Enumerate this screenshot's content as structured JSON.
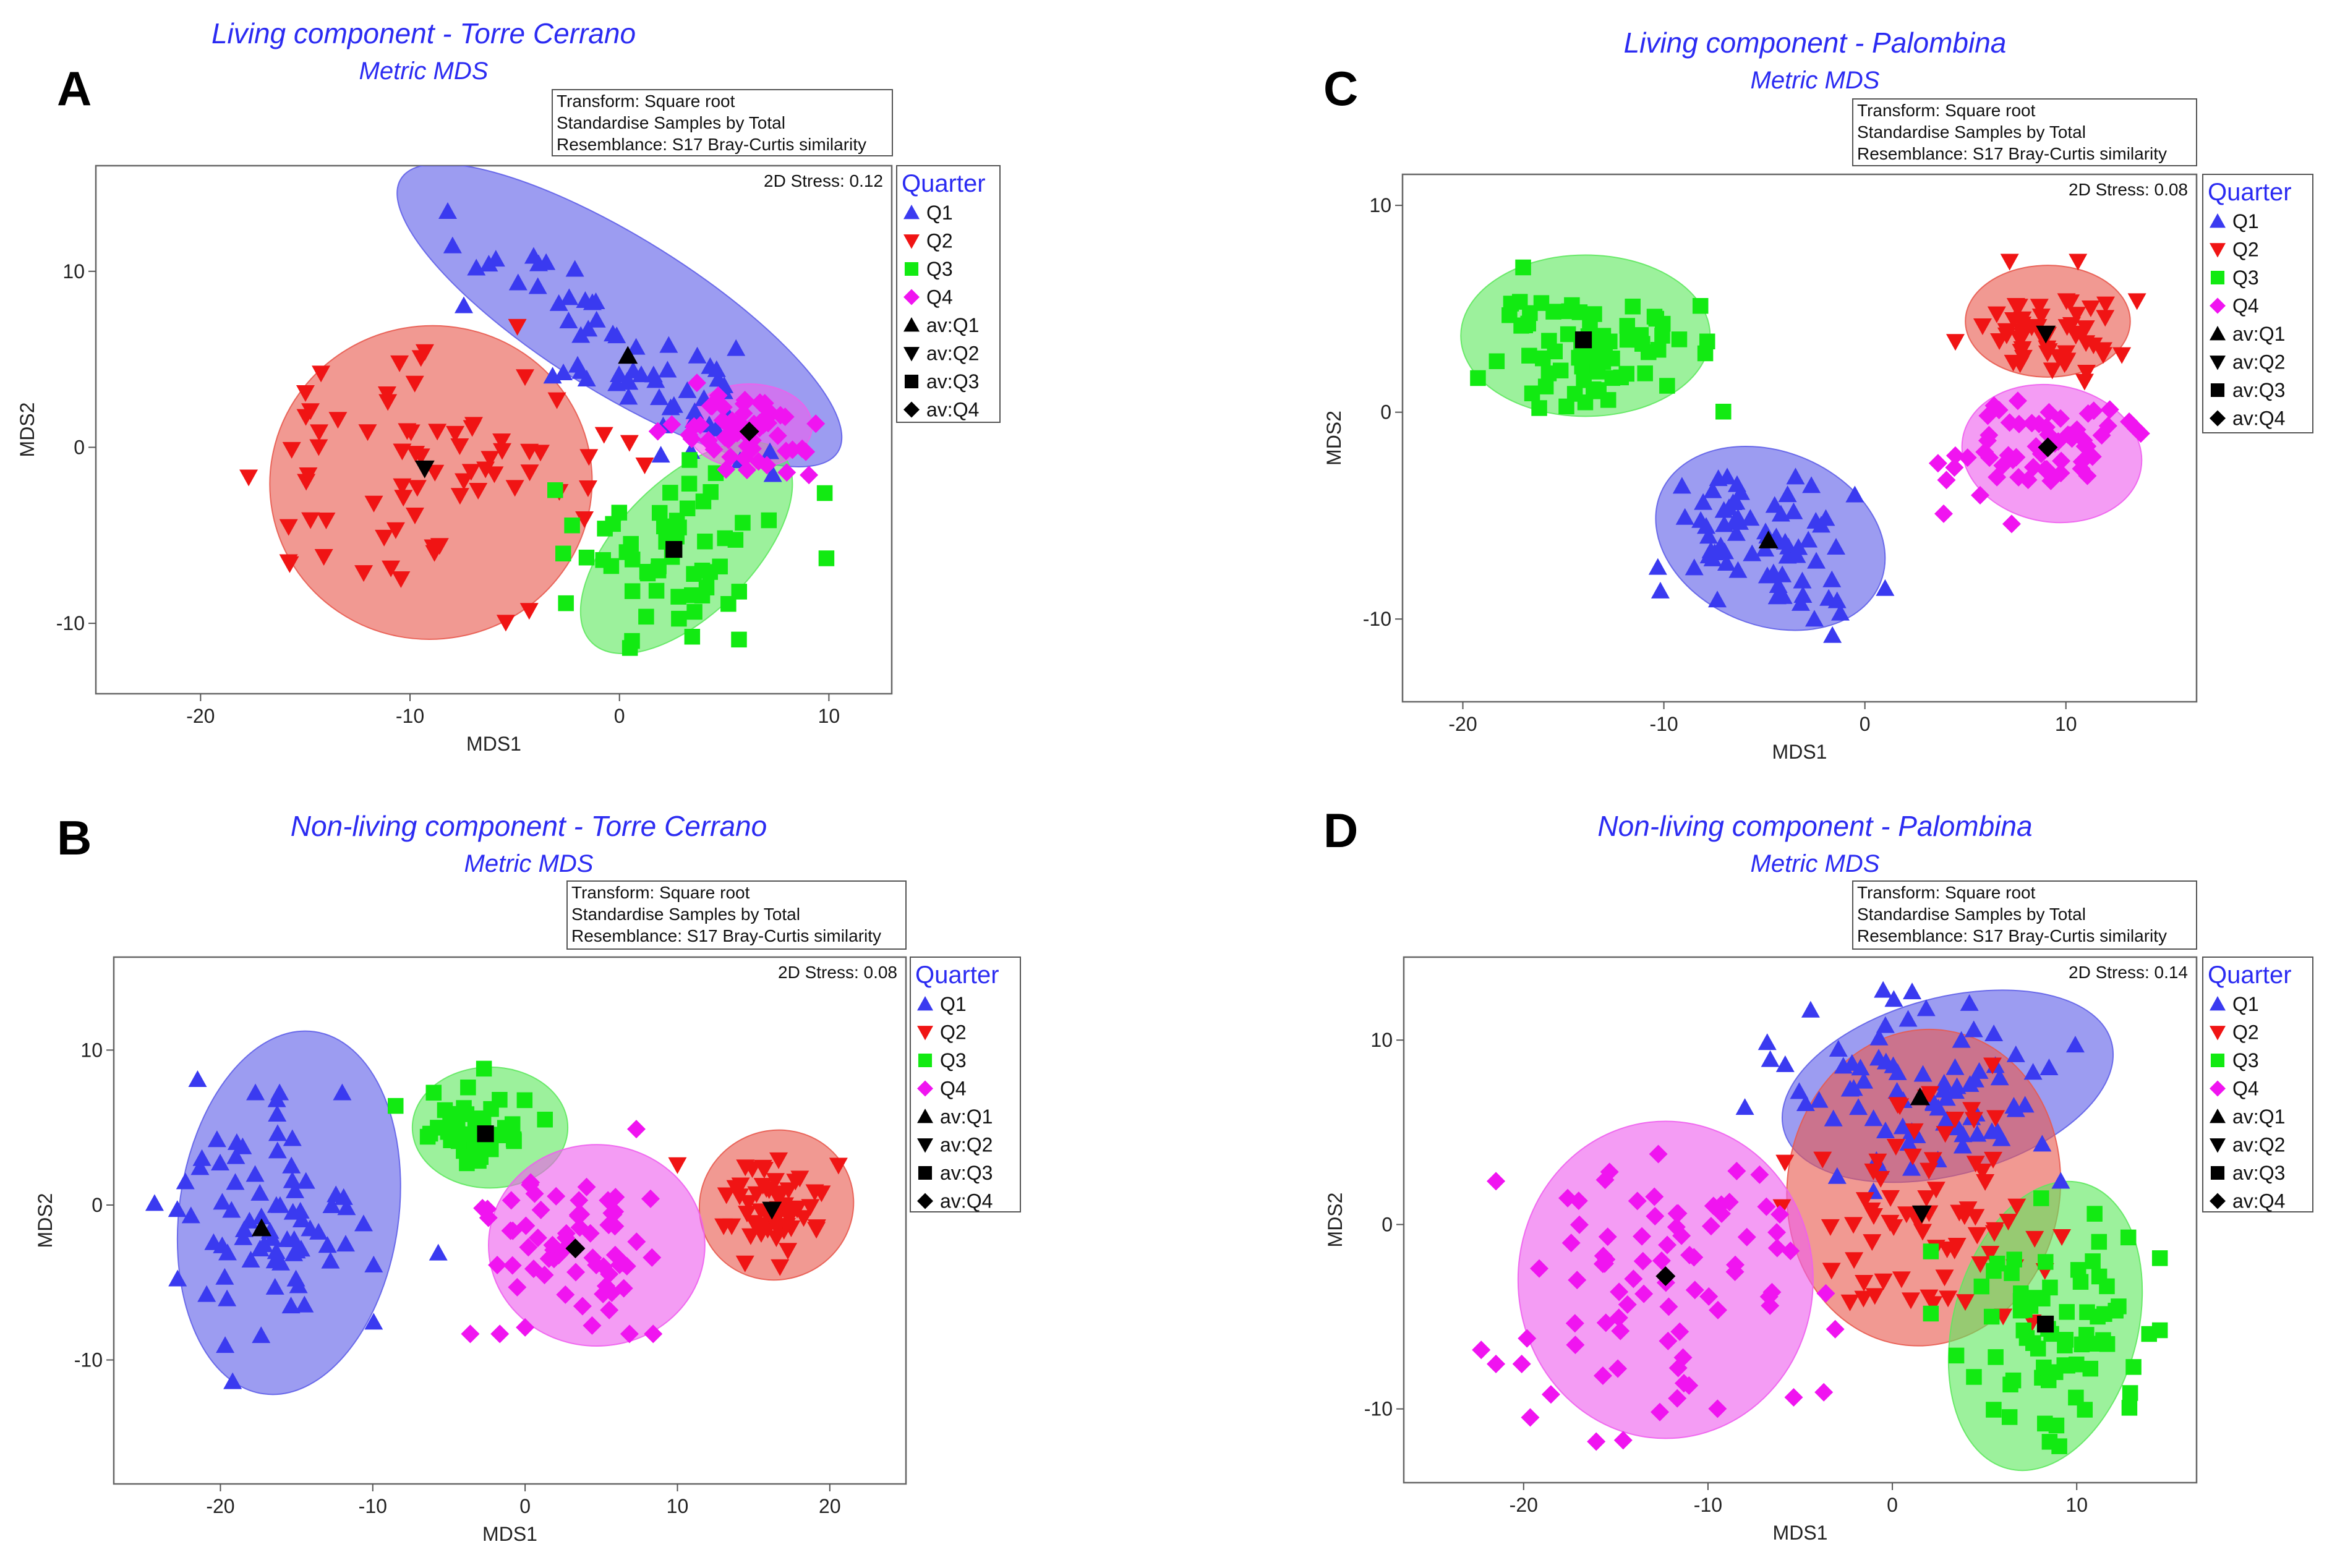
{
  "chart_data": [
    {
      "type": "scatter",
      "id": "A",
      "letter": "A",
      "title": "Living component - Torre Cerrano",
      "subtitle": "Metric MDS",
      "info": [
        "Transform: Square root",
        "Standardise Samples by Total",
        "Resemblance: S17 Bray-Curtis similarity"
      ],
      "stress": "2D Stress: 0.12",
      "xlabel": "MDS1",
      "ylabel": "MDS2",
      "xlim": [
        -25,
        13
      ],
      "ylim": [
        -14,
        16
      ],
      "xticks": [
        -20,
        -10,
        0,
        10
      ],
      "yticks": [
        -10,
        0,
        10
      ],
      "legend_title": "Quarter",
      "legend": [
        "Q1",
        "Q2",
        "Q3",
        "Q4",
        "av:Q1",
        "av:Q2",
        "av:Q3",
        "av:Q4"
      ],
      "groups": [
        {
          "name": "Q1",
          "centroid": [
            0.4,
            5.2
          ],
          "spread": [
            4.6,
            1.6
          ],
          "angle": -0.62,
          "n": 60,
          "extra": [
            [
              -8.2,
              13.4
            ],
            [
              -3.5,
              10.5
            ],
            [
              5.0,
              3.5
            ]
          ]
        },
        {
          "name": "Q2",
          "centroid": [
            -9.3,
            -1.2
          ],
          "spread": [
            4.6,
            3.8
          ],
          "angle": 0.0,
          "n": 70,
          "extra": [
            [
              -10.5,
              4.8
            ],
            [
              -1.5,
              -2.3
            ],
            [
              -15.8,
              -6.5
            ]
          ]
        },
        {
          "name": "Q3",
          "centroid": [
            2.6,
            -5.8
          ],
          "spread": [
            2.6,
            2.6
          ],
          "angle": 0.6,
          "n": 55,
          "extra": [
            [
              9.8,
              -2.6
            ],
            [
              0.5,
              -11.4
            ],
            [
              0.6,
              -11.0
            ]
          ]
        },
        {
          "name": "Q4",
          "centroid": [
            6.2,
            0.9
          ],
          "spread": [
            1.9,
            1.2
          ],
          "angle": 0.0,
          "n": 55,
          "extra": [
            [
              2.5,
              1.3
            ]
          ]
        }
      ],
      "ellipses": [
        {
          "group": "Q1",
          "cx": 0.0,
          "cy": 7.5,
          "rx": 12.3,
          "ry": 4.4,
          "angle": -32
        },
        {
          "group": "Q2",
          "cx": -9.0,
          "cy": -2.0,
          "rx": 7.7,
          "ry": 8.9,
          "angle": 10
        },
        {
          "group": "Q3",
          "cx": 3.2,
          "cy": -5.7,
          "rx": 6.4,
          "ry": 3.8,
          "angle": 45
        },
        {
          "group": "Q4",
          "cx": 6.2,
          "cy": 1.2,
          "rx": 3.0,
          "ry": 2.4,
          "angle": 0
        }
      ]
    },
    {
      "type": "scatter",
      "id": "B",
      "letter": "B",
      "title": "Non-living component - Torre Cerrano",
      "subtitle": "Metric MDS",
      "info": [
        "Transform: Square root",
        "Standardise Samples by Total",
        "Resemblance: S17 Bray-Curtis similarity"
      ],
      "stress": "2D Stress: 0.08",
      "xlabel": "MDS1",
      "ylabel": "MDS2",
      "xlim": [
        -27,
        25
      ],
      "ylim": [
        -18,
        16
      ],
      "xticks": [
        -20,
        -10,
        0,
        10,
        20
      ],
      "yticks": [
        -10,
        0,
        10
      ],
      "legend_title": "Quarter",
      "legend": [
        "Q1",
        "Q2",
        "Q3",
        "Q4",
        "av:Q1",
        "av:Q2",
        "av:Q3",
        "av:Q4"
      ],
      "groups": [
        {
          "name": "Q1",
          "centroid": [
            -17.3,
            -1.5
          ],
          "spread": [
            3.2,
            3.8
          ],
          "angle": 0.0,
          "n": 75,
          "extra": [
            [
              -19.2,
              -11.4
            ],
            [
              -5.7,
              -3.1
            ],
            [
              -21.5,
              8.1
            ],
            [
              -22.3,
              1.5
            ]
          ]
        },
        {
          "name": "Q2",
          "centroid": [
            16.2,
            -0.3
          ],
          "spread": [
            1.9,
            1.7
          ],
          "angle": 0.0,
          "n": 55,
          "extra": [
            [
              10.0,
              2.6
            ]
          ]
        },
        {
          "name": "Q3",
          "centroid": [
            -2.6,
            4.6
          ],
          "spread": [
            2.3,
            1.3
          ],
          "angle": 0.0,
          "n": 45,
          "extra": [
            [
              -8.5,
              6.4
            ],
            [
              -2.7,
              8.8
            ]
          ]
        },
        {
          "name": "Q4",
          "centroid": [
            3.3,
            -2.8
          ],
          "spread": [
            3.0,
            2.4
          ],
          "angle": 0.0,
          "n": 65,
          "extra": [
            [
              7.3,
              4.9
            ],
            [
              0.0,
              -7.9
            ],
            [
              -2.8,
              -0.2
            ]
          ]
        }
      ],
      "ellipses": [
        {
          "group": "Q1",
          "cx": -15.5,
          "cy": -0.5,
          "rx": 7.2,
          "ry": 11.8,
          "angle": -8
        },
        {
          "group": "Q2",
          "cx": 16.5,
          "cy": 0.0,
          "rx": 5.1,
          "ry": 4.8,
          "angle": 25
        },
        {
          "group": "Q3",
          "cx": -2.3,
          "cy": 5.0,
          "rx": 5.1,
          "ry": 3.9,
          "angle": 0
        },
        {
          "group": "Q4",
          "cx": 4.7,
          "cy": -2.6,
          "rx": 7.1,
          "ry": 6.5,
          "angle": 0
        }
      ]
    },
    {
      "type": "scatter",
      "id": "C",
      "letter": "C",
      "title": "Living component - Palombina",
      "subtitle": "Metric MDS",
      "info": [
        "Transform: Square root",
        "Standardise Samples by Total",
        "Resemblance: S17 Bray-Curtis similarity"
      ],
      "stress": "2D Stress: 0.08",
      "xlabel": "MDS1",
      "ylabel": "MDS2",
      "xlim": [
        -23,
        16.5
      ],
      "ylim": [
        -14,
        11.5
      ],
      "xticks": [
        -20,
        -10,
        0,
        10
      ],
      "yticks": [
        -10,
        0,
        10
      ],
      "legend_title": "Quarter",
      "legend": [
        "Q1",
        "Q2",
        "Q3",
        "Q4",
        "av:Q1",
        "av:Q2",
        "av:Q3",
        "av:Q4"
      ],
      "groups": [
        {
          "name": "Q1",
          "centroid": [
            -4.8,
            -6.2
          ],
          "spread": [
            2.8,
            1.8
          ],
          "angle": -0.35,
          "n": 70,
          "extra": [
            [
              -10.3,
              -7.5
            ],
            [
              -1.8,
              -9.0
            ],
            [
              -0.5,
              -4.0
            ]
          ]
        },
        {
          "name": "Q2",
          "centroid": [
            9.0,
            3.8
          ],
          "spread": [
            2.0,
            1.0
          ],
          "angle": 0.0,
          "n": 55,
          "extra": [
            [
              7.2,
              7.3
            ],
            [
              10.6,
              7.3
            ]
          ]
        },
        {
          "name": "Q3",
          "centroid": [
            -14.0,
            3.5
          ],
          "spread": [
            3.2,
            1.8
          ],
          "angle": 0.0,
          "n": 70,
          "extra": [
            [
              -16.2,
              0.2
            ],
            [
              -17.0,
              7.0
            ]
          ]
        },
        {
          "name": "Q4",
          "centroid": [
            9.1,
            -1.7
          ],
          "spread": [
            2.5,
            1.2
          ],
          "angle": 0.2,
          "n": 60,
          "extra": [
            [
              4.5,
              -2.1
            ],
            [
              7.3,
              -5.4
            ]
          ]
        }
      ],
      "ellipses": [
        {
          "group": "Q1",
          "cx": -4.7,
          "cy": -6.1,
          "rx": 5.9,
          "ry": 4.2,
          "angle": -22
        },
        {
          "group": "Q2",
          "cx": 9.1,
          "cy": 4.4,
          "rx": 4.1,
          "ry": 2.7,
          "angle": 0
        },
        {
          "group": "Q3",
          "cx": -13.9,
          "cy": 3.7,
          "rx": 6.2,
          "ry": 3.9,
          "angle": 0
        },
        {
          "group": "Q4",
          "cx": 9.3,
          "cy": -2.0,
          "rx": 4.5,
          "ry": 3.3,
          "angle": -10
        }
      ]
    },
    {
      "type": "scatter",
      "id": "D",
      "letter": "D",
      "title": "Non-living component - Palombina",
      "subtitle": "Metric MDS",
      "info": [
        "Transform: Square root",
        "Standardise Samples by Total",
        "Resemblance: S17 Bray-Curtis similarity"
      ],
      "stress": "2D Stress: 0.14",
      "xlabel": "MDS1",
      "ylabel": "MDS2",
      "xlim": [
        -26.5,
        16.5
      ],
      "ylim": [
        -14,
        14.5
      ],
      "xticks": [
        -20,
        -10,
        0,
        10
      ],
      "yticks": [
        -10,
        0,
        10
      ],
      "legend_title": "Quarter",
      "legend": [
        "Q1",
        "Q2",
        "Q3",
        "Q4",
        "av:Q1",
        "av:Q2",
        "av:Q3",
        "av:Q4"
      ],
      "groups": [
        {
          "name": "Q1",
          "centroid": [
            1.5,
            6.9
          ],
          "spread": [
            4.0,
            2.4
          ],
          "angle": -0.2,
          "n": 80,
          "extra": [
            [
              8.5,
              8.5
            ],
            [
              -0.5,
              12.7
            ]
          ]
        },
        {
          "name": "Q2",
          "centroid": [
            1.6,
            0.6
          ],
          "spread": [
            3.3,
            3.5
          ],
          "angle": 0.0,
          "n": 75,
          "extra": [
            [
              -2.3,
              -4.2
            ],
            [
              5.6,
              5.8
            ]
          ]
        },
        {
          "name": "Q3",
          "centroid": [
            8.3,
            -5.4
          ],
          "spread": [
            2.7,
            3.2
          ],
          "angle": 0.0,
          "n": 70,
          "extra": [
            [
              12.8,
              -0.7
            ],
            [
              8.9,
              -10.9
            ]
          ]
        },
        {
          "name": "Q4",
          "centroid": [
            -12.3,
            -2.8
          ],
          "spread": [
            4.0,
            3.9
          ],
          "angle": 0.0,
          "n": 80,
          "extra": [
            [
              -22.3,
              -6.8
            ],
            [
              -14.6,
              -11.7
            ],
            [
              -7.2,
              2.7
            ]
          ]
        }
      ],
      "ellipses": [
        {
          "group": "Q1",
          "cx": 3.0,
          "cy": 7.5,
          "rx": 9.2,
          "ry": 4.8,
          "angle": 15
        },
        {
          "group": "Q2",
          "cx": 1.7,
          "cy": 2.0,
          "rx": 7.4,
          "ry": 8.6,
          "angle": -8
        },
        {
          "group": "Q3",
          "cx": 8.3,
          "cy": -5.5,
          "rx": 5.0,
          "ry": 8.0,
          "angle": -15
        },
        {
          "group": "Q4",
          "cx": -12.3,
          "cy": -3.0,
          "rx": 8.0,
          "ry": 8.6,
          "angle": 0
        }
      ]
    }
  ],
  "colors": {
    "Q1": "#3a3af0",
    "Q2": "#f01414",
    "Q3": "#12ea12",
    "Q4": "#f014f0",
    "Q1_fill": "#5f5fe8",
    "Q2_fill": "#e85a4f",
    "Q3_fill": "#5fe85f",
    "Q4_fill": "#ee5fee",
    "title": "#2b2bf2",
    "avg": "#000000"
  }
}
